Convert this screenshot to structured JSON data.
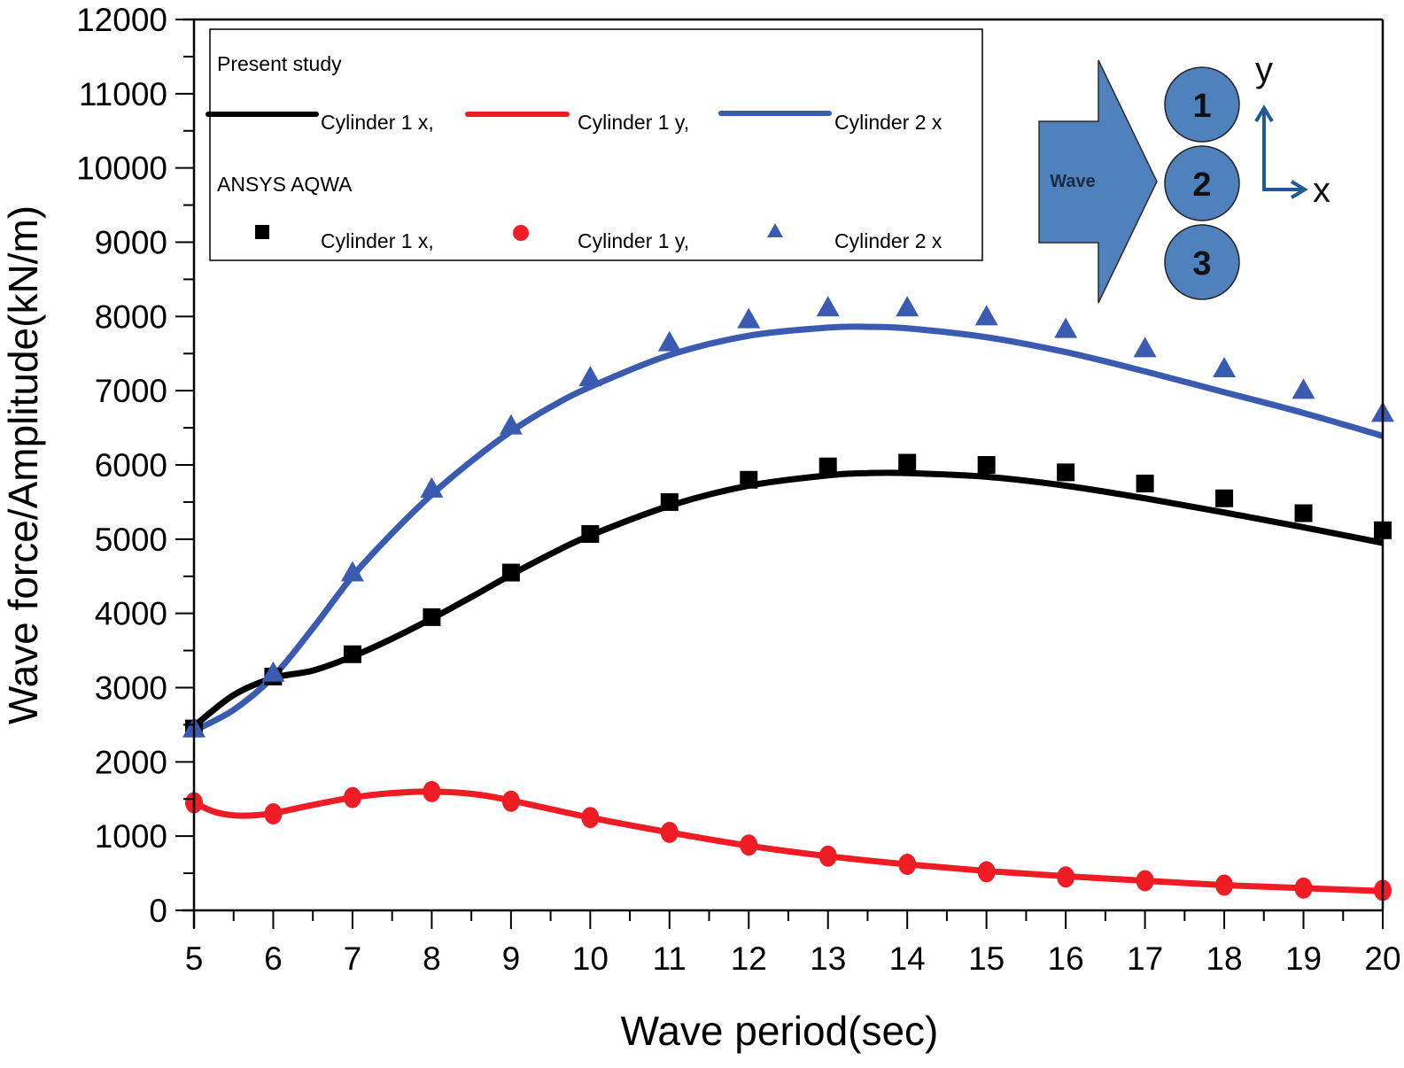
{
  "chart_data": {
    "type": "line",
    "title": "",
    "xlabel": "Wave period(sec)",
    "ylabel": "Wave force/Amplitude(kN/m)",
    "xlim": [
      5,
      20
    ],
    "ylim": [
      0,
      12000
    ],
    "x_ticks": [
      5,
      6,
      7,
      8,
      9,
      10,
      11,
      12,
      13,
      14,
      15,
      16,
      17,
      18,
      19,
      20
    ],
    "x_tick_labels": [
      "5",
      "6",
      "7",
      "8",
      "9",
      "10",
      "11",
      "12",
      "13",
      "14",
      "15",
      "16",
      "17",
      "18",
      "19",
      "20"
    ],
    "y_ticks": [
      0,
      1000,
      2000,
      3000,
      4000,
      5000,
      6000,
      7000,
      8000,
      9000,
      10000,
      11000,
      12000
    ],
    "y_tick_labels": [
      "0",
      "1000",
      "2000",
      "3000",
      "4000",
      "5000",
      "6000",
      "7000",
      "8000",
      "9000",
      "10000",
      "11000",
      "12000"
    ],
    "grid": false,
    "x": [
      5,
      6,
      7,
      8,
      9,
      10,
      11,
      12,
      13,
      14,
      15,
      16,
      17,
      18,
      19,
      20
    ],
    "legend": {
      "placement": "top-left",
      "group1_title": "Present study",
      "group2_title": "ANSYS AQWA",
      "line_entries": [
        "Cylinder 1 x,",
        "Cylinder 1 y,",
        "Cylinder 2 x"
      ],
      "marker_entries": [
        "Cylinder 1 x,",
        "Cylinder 1 y,",
        "Cylinder 2 x"
      ]
    },
    "series": [
      {
        "name": "Present study - Cylinder 1 x",
        "group": "Present study",
        "kind": "line",
        "color": "#000000",
        "x": [
          5,
          5.5,
          6,
          6.5,
          7,
          7.5,
          8,
          8.5,
          9,
          9.5,
          10,
          11,
          12,
          13,
          13.5,
          14,
          15,
          16,
          17,
          18,
          19,
          20
        ],
        "values": [
          2480,
          2900,
          3130,
          3230,
          3420,
          3660,
          3930,
          4220,
          4520,
          4800,
          5050,
          5450,
          5720,
          5860,
          5890,
          5890,
          5840,
          5720,
          5550,
          5360,
          5160,
          4950
        ]
      },
      {
        "name": "Present study - Cylinder 1 y",
        "group": "Present study",
        "kind": "line",
        "color": "#ee1c24",
        "x": [
          5,
          5.25,
          5.5,
          5.75,
          6,
          6.5,
          7,
          7.5,
          8,
          8.5,
          9,
          10,
          11,
          12,
          13,
          14,
          15,
          16,
          17,
          18,
          19,
          20
        ],
        "values": [
          1450,
          1330,
          1280,
          1280,
          1310,
          1420,
          1520,
          1580,
          1600,
          1570,
          1480,
          1250,
          1050,
          870,
          730,
          620,
          530,
          460,
          400,
          340,
          300,
          260
        ]
      },
      {
        "name": "Present study - Cylinder 2 x",
        "group": "Present study",
        "kind": "line",
        "color": "#3a5bb0",
        "x": [
          5,
          5.5,
          6,
          6.5,
          7,
          7.5,
          8,
          8.5,
          9,
          9.5,
          10,
          11,
          12,
          13,
          13.5,
          14,
          15,
          16,
          17,
          18,
          19,
          20
        ],
        "values": [
          2420,
          2700,
          3150,
          3800,
          4500,
          5080,
          5600,
          6050,
          6450,
          6780,
          7050,
          7480,
          7740,
          7850,
          7860,
          7840,
          7720,
          7520,
          7260,
          6980,
          6700,
          6390
        ]
      },
      {
        "name": "ANSYS AQWA - Cylinder 1 x",
        "group": "ANSYS AQWA",
        "kind": "marker",
        "marker": "square",
        "color": "#000000",
        "x": [
          5,
          6,
          7,
          8,
          9,
          10,
          11,
          12,
          13,
          14,
          15,
          16,
          17,
          18,
          19,
          20
        ],
        "values": [
          2450,
          3150,
          3450,
          3950,
          4550,
          5070,
          5500,
          5800,
          5980,
          6030,
          6000,
          5900,
          5750,
          5550,
          5350,
          5120
        ]
      },
      {
        "name": "ANSYS AQWA - Cylinder 1 y",
        "group": "ANSYS AQWA",
        "kind": "marker",
        "marker": "circle",
        "color": "#ee1c24",
        "x": [
          5,
          6,
          7,
          8,
          9,
          10,
          11,
          12,
          13,
          14,
          15,
          16,
          17,
          18,
          19,
          20
        ],
        "values": [
          1450,
          1300,
          1520,
          1600,
          1470,
          1250,
          1050,
          880,
          730,
          620,
          520,
          450,
          400,
          340,
          300,
          270
        ]
      },
      {
        "name": "ANSYS AQWA - Cylinder 2 x",
        "group": "ANSYS AQWA",
        "kind": "marker",
        "marker": "triangle",
        "color": "#3a5bb0",
        "x": [
          5,
          6,
          7,
          8,
          9,
          10,
          11,
          12,
          13,
          14,
          15,
          16,
          17,
          18,
          19,
          20
        ],
        "values": [
          2450,
          3200,
          4550,
          5680,
          6530,
          7180,
          7650,
          7960,
          8120,
          8120,
          8000,
          7830,
          7570,
          7300,
          7010,
          6700
        ]
      }
    ],
    "inset_diagram": {
      "placement": "top-right",
      "arrow_label": "Wave",
      "cylinders": [
        "1",
        "2",
        "3"
      ],
      "axis_labels": {
        "x": "x",
        "y": "y"
      },
      "fill_color": "#4f81bd",
      "axis_arrow_color": "#1f5a96"
    }
  }
}
